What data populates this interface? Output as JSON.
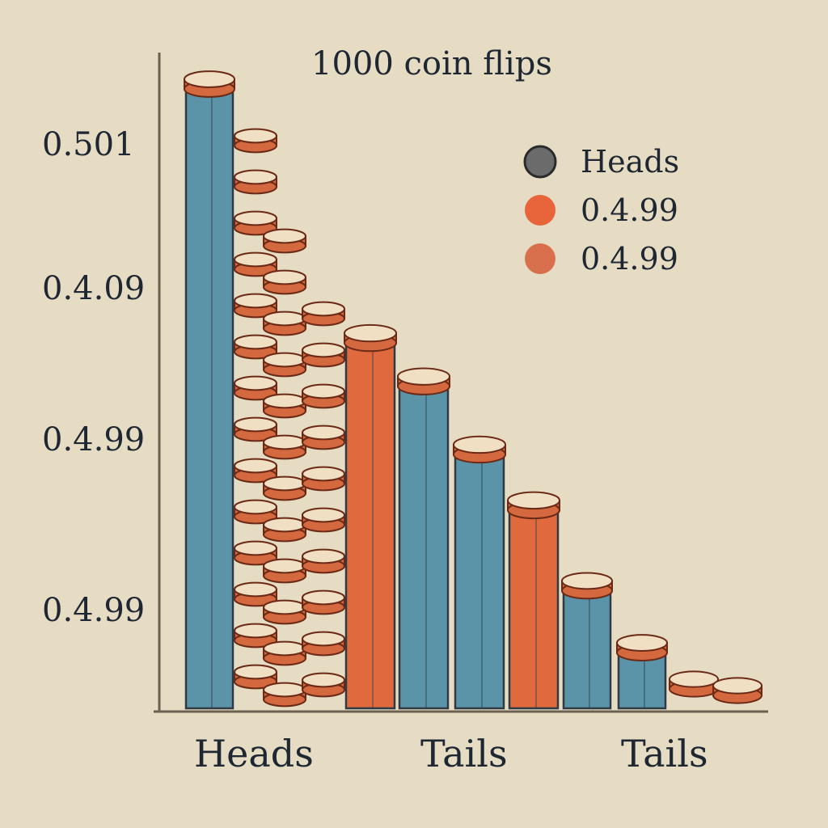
{
  "chart_data": {
    "type": "bar",
    "title": "1000 coin flips",
    "y_tick_labels": [
      "0.501",
      "0.4.09",
      "0.4.99",
      "0.4.99"
    ],
    "x_category_labels": [
      "Heads",
      "Tails",
      "Tails"
    ],
    "legend_position": "top-right",
    "legend": [
      {
        "label": "Heads",
        "color": "#6b6b6b"
      },
      {
        "label": "0.4.99",
        "color": "#e8643a"
      },
      {
        "label": "0.4.99",
        "color": "#d9704d"
      }
    ],
    "series_colors": {
      "blue": "#5b93a8",
      "orange": "#e06a3e"
    },
    "coin_color": "#f1dfc4",
    "bars": [
      {
        "value": 1.0,
        "color": "blue",
        "coins": 1
      },
      {
        "value": 0.59,
        "color": "orange",
        "coins": 1
      },
      {
        "value": 0.52,
        "color": "blue",
        "coins": 1
      },
      {
        "value": 0.41,
        "color": "blue",
        "coins": 1
      },
      {
        "value": 0.32,
        "color": "orange",
        "coins": 1
      },
      {
        "value": 0.19,
        "color": "blue",
        "coins": 1
      },
      {
        "value": 0.09,
        "color": "blue",
        "coins": 1
      },
      {
        "value": 0.03,
        "color": "none",
        "coins": 1
      },
      {
        "value": 0.0,
        "color": "none",
        "coins": 1
      }
    ],
    "ylim": [
      0,
      1
    ]
  }
}
